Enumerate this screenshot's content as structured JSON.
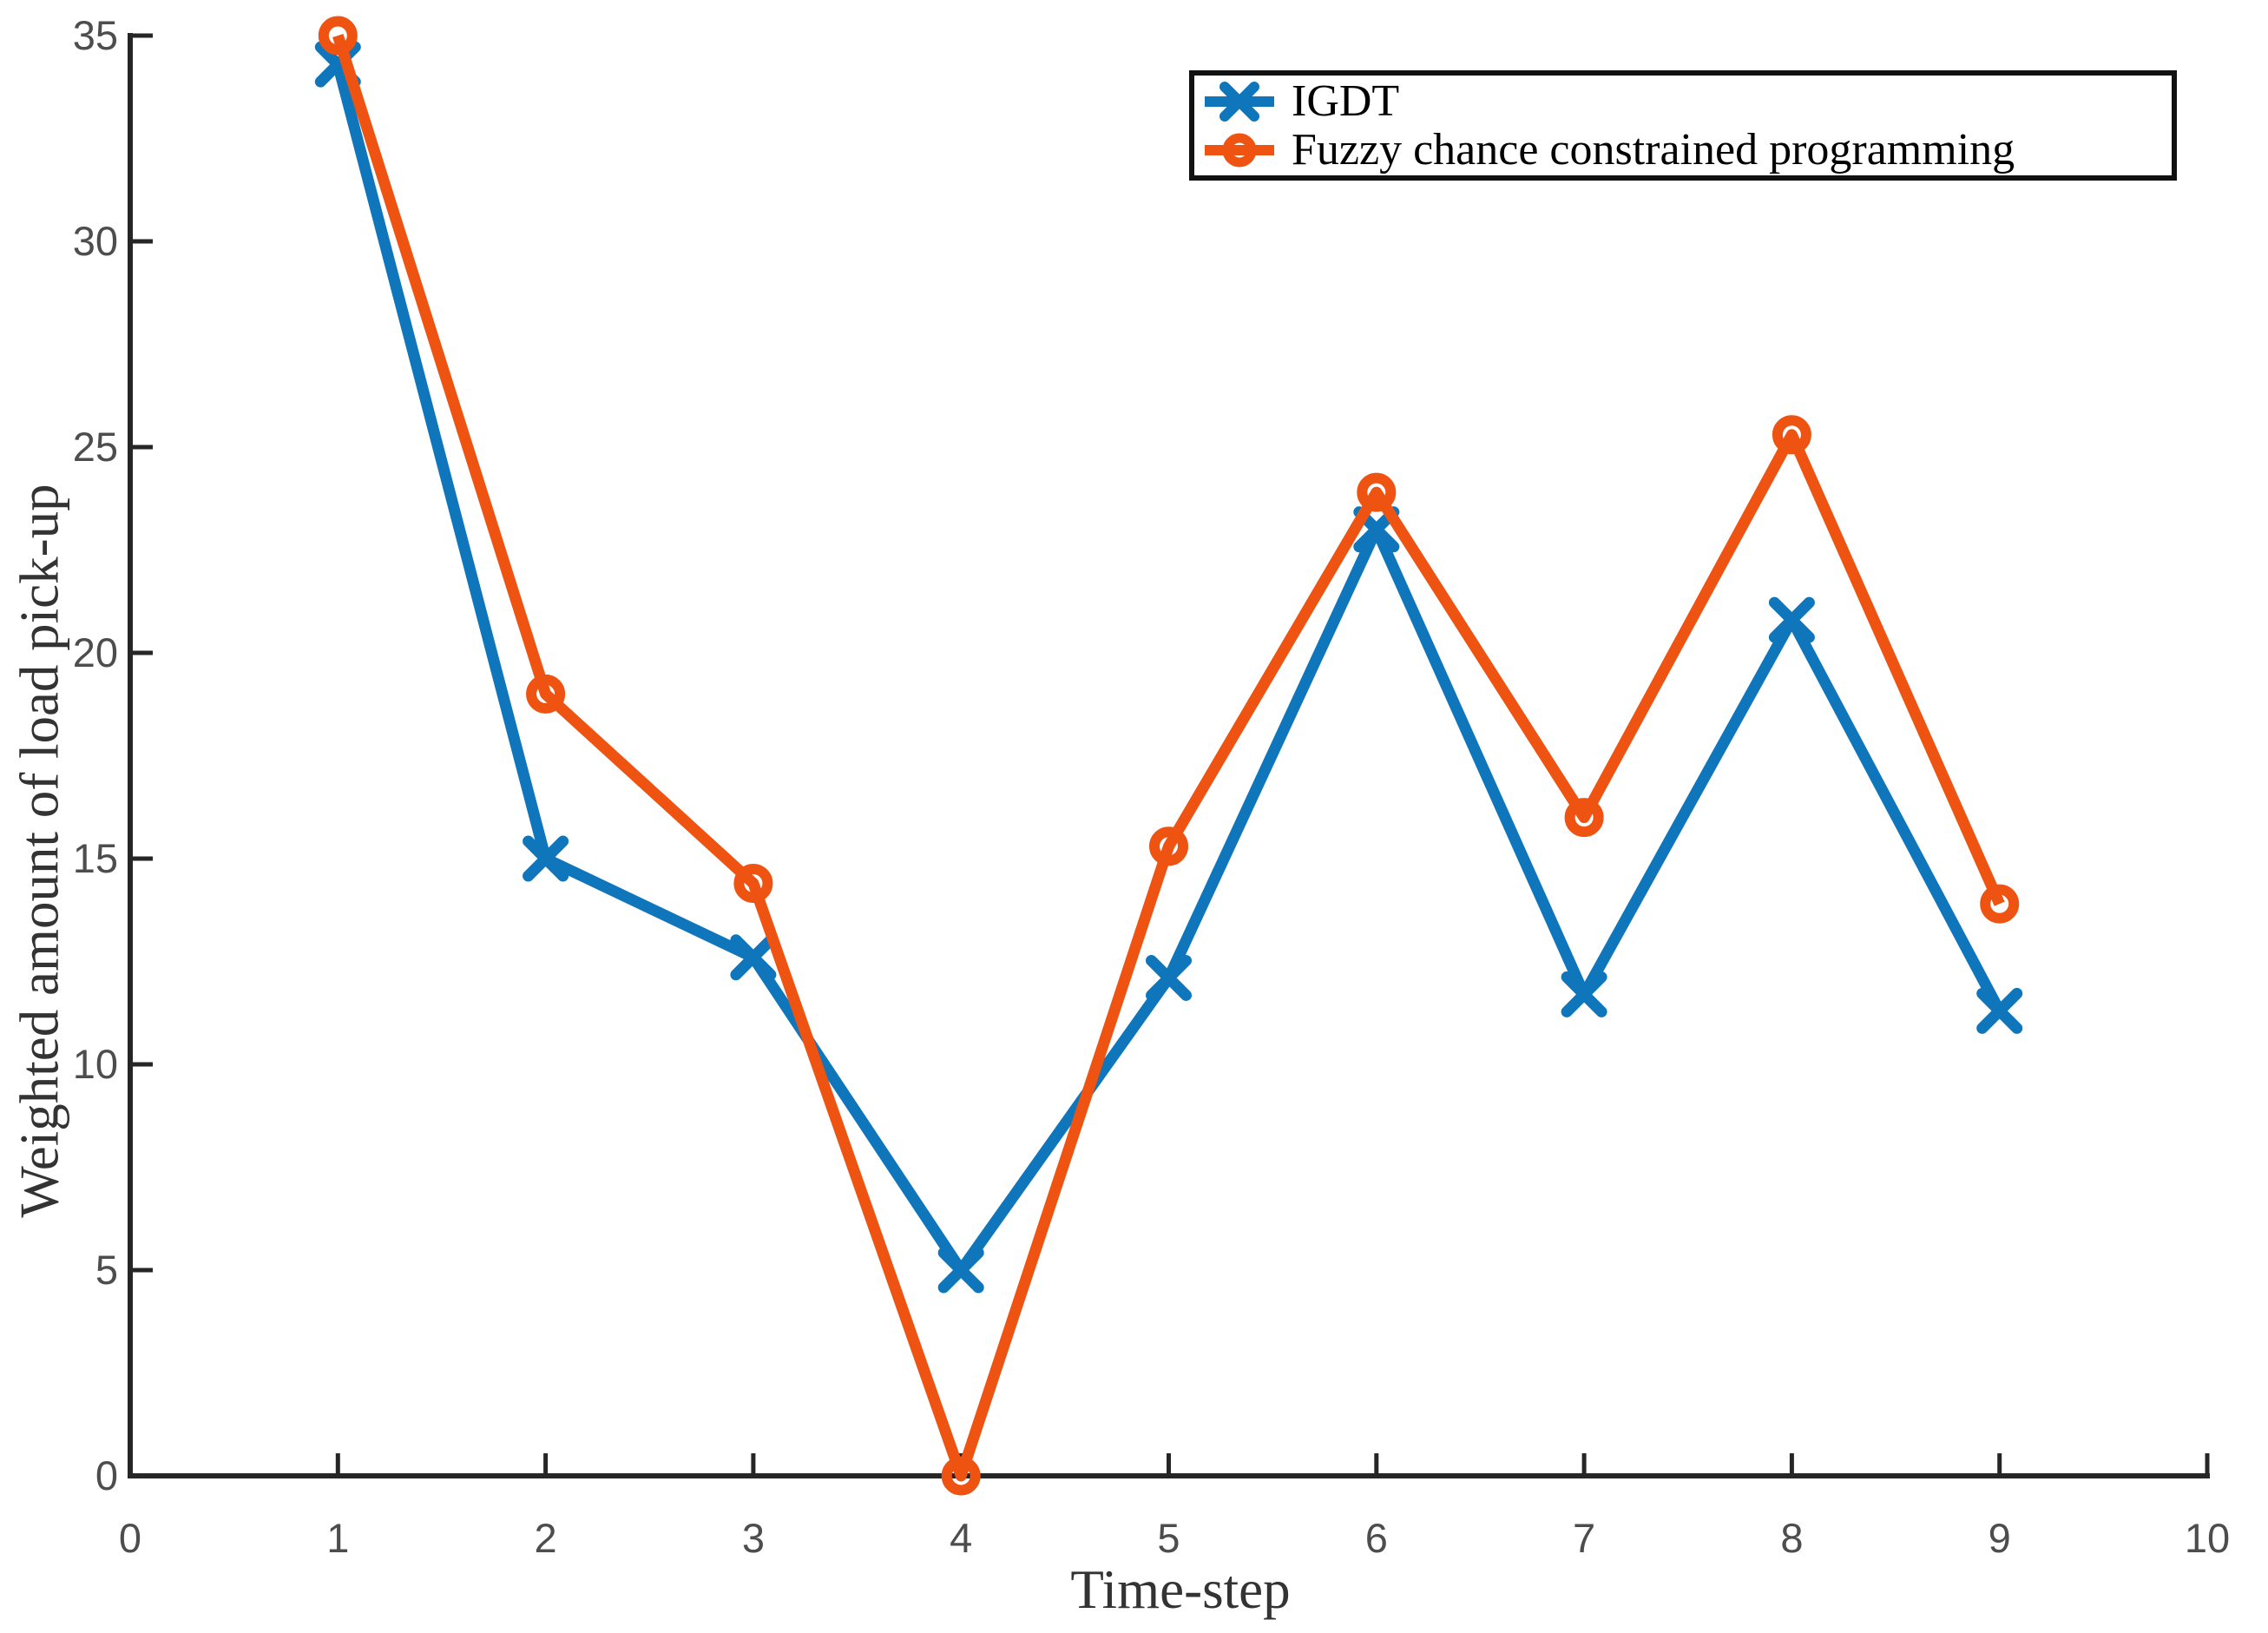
{
  "figure": {
    "background": "#ffffff"
  },
  "chart_data": {
    "type": "line",
    "title": "",
    "xlabel": "Time-step",
    "ylabel": "Weighted amount of load pick-up",
    "xlim": [
      0,
      10
    ],
    "ylim": [
      0,
      35
    ],
    "x_ticks": [
      0,
      1,
      2,
      3,
      4,
      5,
      6,
      7,
      8,
      9,
      10
    ],
    "y_ticks": [
      0,
      5,
      10,
      15,
      20,
      25,
      30,
      35
    ],
    "grid": false,
    "legend_position": "top-right",
    "x": [
      1,
      2,
      3,
      4,
      5,
      6,
      7,
      8,
      9
    ],
    "series": [
      {
        "name": "IGDT",
        "color": "#0f76bc",
        "marker": "x",
        "values": [
          34.3,
          15.0,
          12.6,
          5.0,
          12.1,
          23.0,
          11.7,
          20.8,
          11.3
        ]
      },
      {
        "name": "Fuzzy chance constrained programming",
        "color": "#ee5312",
        "marker": "circle",
        "values": [
          35.0,
          19.0,
          14.4,
          0.0,
          15.3,
          23.9,
          16.0,
          25.3,
          13.9
        ]
      }
    ],
    "colors": {
      "axis": "#262626",
      "tick_label": "#4d4d4d",
      "axis_title": "#333333",
      "legend_text": "#000000",
      "legend_border": "#111111"
    }
  }
}
